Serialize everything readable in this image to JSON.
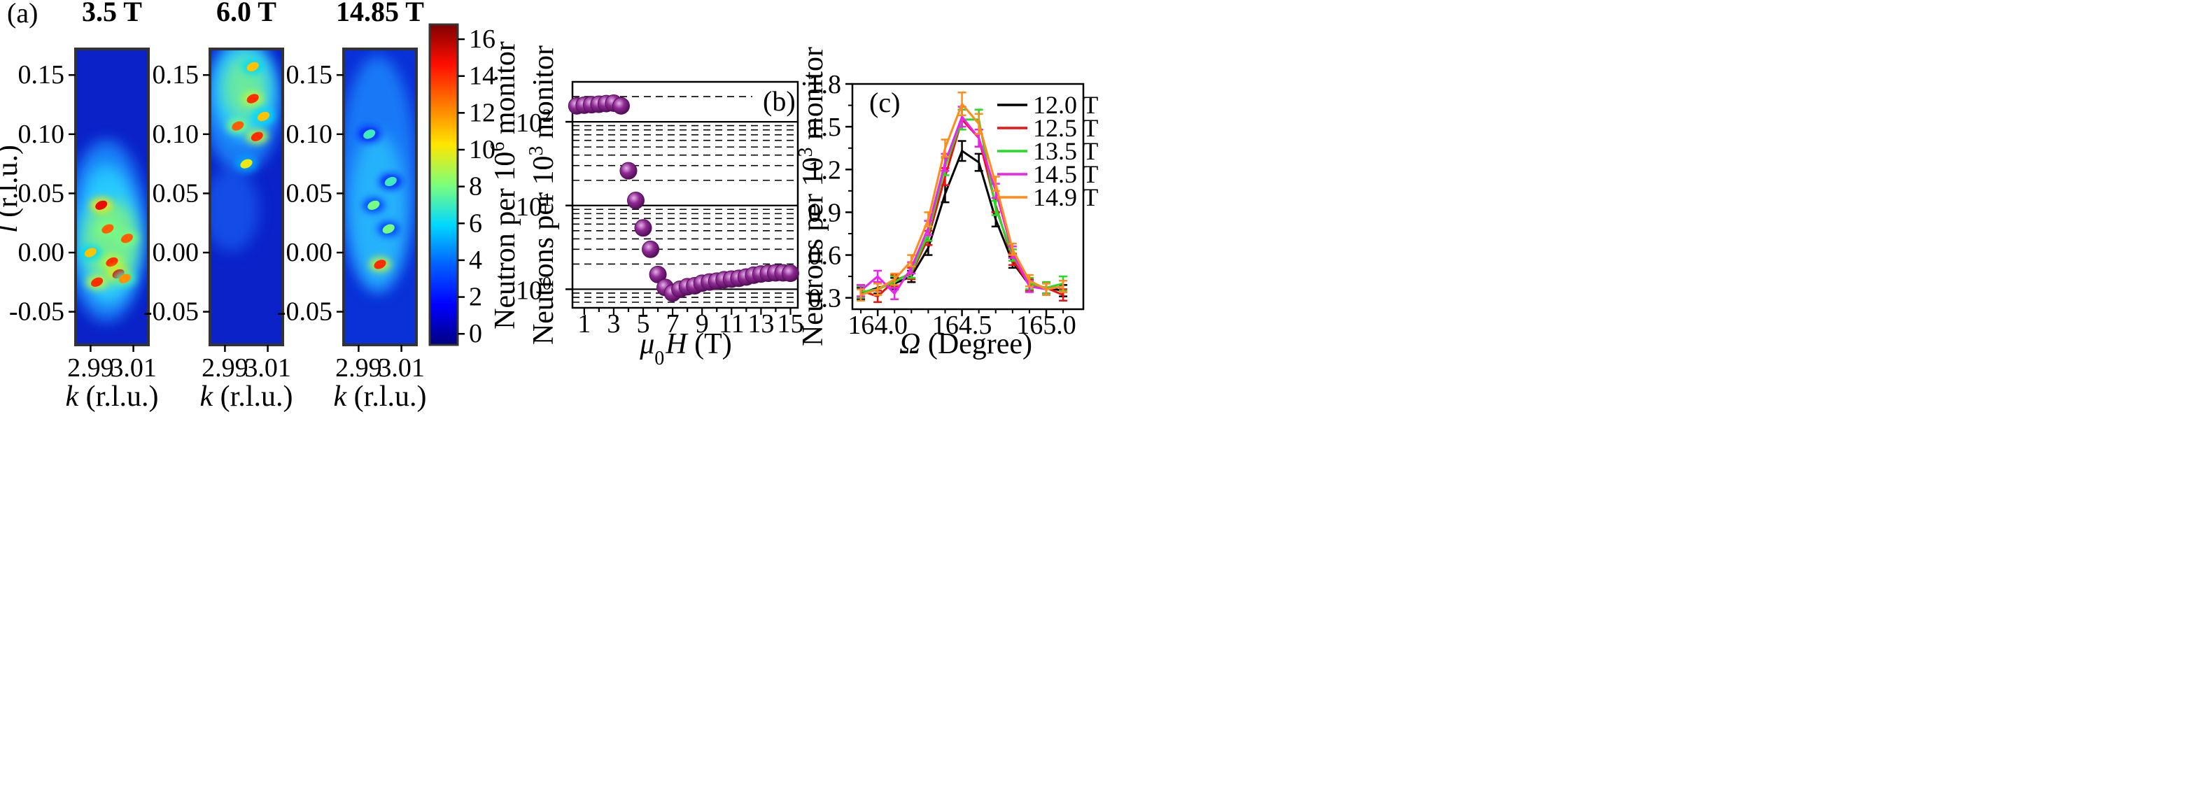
{
  "figure": {
    "panel_a_label": "(a)",
    "panel_b_label": "(b)",
    "panel_c_label": "(c)"
  },
  "chart_data": [
    {
      "id": "a",
      "type": "heatmap",
      "panels": [
        {
          "title": "3.5 T",
          "hotspots": [
            {
              "k": 2.995,
              "l": 0.04,
              "v": 15
            },
            {
              "k": 2.998,
              "l": 0.02,
              "v": 13
            },
            {
              "k": 3.0,
              "l": -0.008,
              "v": 14
            },
            {
              "k": 3.003,
              "l": -0.018,
              "v": 15
            },
            {
              "k": 2.993,
              "l": -0.025,
              "v": 14
            },
            {
              "k": 3.007,
              "l": 0.012,
              "v": 13
            },
            {
              "k": 2.99,
              "l": 0.0,
              "v": 11
            },
            {
              "k": 3.006,
              "l": -0.022,
              "v": 12
            }
          ]
        },
        {
          "title": "6.0 T",
          "hotspots": [
            {
              "k": 3.003,
              "l": 0.13,
              "v": 14
            },
            {
              "k": 2.996,
              "l": 0.107,
              "v": 13
            },
            {
              "k": 3.005,
              "l": 0.098,
              "v": 14
            },
            {
              "k": 3.003,
              "l": 0.157,
              "v": 11
            },
            {
              "k": 3.0,
              "l": 0.075,
              "v": 10
            },
            {
              "k": 3.008,
              "l": 0.115,
              "v": 11
            }
          ]
        },
        {
          "title": "14.85 T",
          "hotspots": [
            {
              "k": 3.0,
              "l": -0.01,
              "v": 14
            },
            {
              "k": 2.997,
              "l": 0.04,
              "v": 8
            },
            {
              "k": 3.004,
              "l": 0.02,
              "v": 8
            },
            {
              "k": 2.995,
              "l": 0.1,
              "v": 7
            },
            {
              "k": 3.005,
              "l": 0.06,
              "v": 7
            }
          ]
        }
      ],
      "xlabel": "k (r.l.u.)",
      "ylabel": "l (r.l.u.)",
      "x_ticks": [
        "2.99",
        "3.01"
      ],
      "y_ticks": [
        "0.15",
        "0.10",
        "0.05",
        "0.00",
        "-0.05"
      ],
      "xlim": [
        2.983,
        3.017
      ],
      "ylim": [
        -0.078,
        0.172
      ],
      "colorbar": {
        "label": "Neutron per 10^6 monitor",
        "label_main": "Neutron per 10",
        "label_sup": "6",
        "label_end": " monitor",
        "range": [
          -0.6,
          16.8
        ],
        "ticks": [
          "0",
          "2",
          "4",
          "6",
          "8",
          "10",
          "12",
          "14",
          "16"
        ]
      }
    },
    {
      "id": "b",
      "type": "scatter",
      "xlabel": "μ0H (T)",
      "xlabel_sym": "μ",
      "xlabel_sub": "0",
      "xlabel_rest": "H (T)",
      "ylabel": "Neutrons per 10^3 monitor",
      "ylabel_main": "Neutrons per 10",
      "ylabel_sup": "3",
      "ylabel_end": " monitor",
      "yscale": "log",
      "ylim": [
        0.6,
        300
      ],
      "xlim": [
        0.2,
        15.5
      ],
      "x_ticks": [
        "1",
        "3",
        "5",
        "7",
        "9",
        "11",
        "13",
        "15"
      ],
      "y_ticks": [
        {
          "base": "10",
          "exp": "0"
        },
        {
          "base": "10",
          "exp": "1"
        },
        {
          "base": "10",
          "exp": "2"
        }
      ],
      "x": [
        0.5,
        1.0,
        1.5,
        2.0,
        2.5,
        3.0,
        3.5,
        4.0,
        4.5,
        5.0,
        5.5,
        6.0,
        6.5,
        7.0,
        7.5,
        8.0,
        8.5,
        9.0,
        9.5,
        10.0,
        10.5,
        11.0,
        11.5,
        12.0,
        12.5,
        13.0,
        13.5,
        14.0,
        14.5,
        15.0
      ],
      "y": [
        155,
        158,
        160,
        162,
        165,
        167,
        155,
        26,
        11.5,
        5.4,
        3.0,
        1.5,
        1.05,
        0.9,
        1.0,
        1.07,
        1.1,
        1.18,
        1.22,
        1.25,
        1.3,
        1.32,
        1.35,
        1.4,
        1.47,
        1.52,
        1.55,
        1.57,
        1.57,
        1.55
      ]
    },
    {
      "id": "c",
      "type": "line",
      "xlabel": "Ω (Degree)",
      "xlabel_sym": "Ω",
      "xlabel_rest": " (Degree)",
      "ylabel": "Neutrons per 10^3 monitor",
      "ylabel_main": "Neutrons per 10",
      "ylabel_sup": "3",
      "ylabel_end": " monitor",
      "xlim": [
        163.85,
        165.22
      ],
      "ylim": [
        0.22,
        1.8
      ],
      "x_ticks": [
        "164.0",
        "164.5",
        "165.0"
      ],
      "y_ticks": [
        "0.3",
        "0.6",
        "0.9",
        "1.2",
        "1.5",
        "1.8"
      ],
      "x": [
        163.9,
        164.0,
        164.1,
        164.2,
        164.3,
        164.4,
        164.5,
        164.6,
        164.7,
        164.8,
        164.9,
        165.0,
        165.1
      ],
      "series": [
        {
          "name": "12.0 T",
          "color": "#000000",
          "values": [
            0.33,
            0.37,
            0.4,
            0.45,
            0.65,
            1.03,
            1.33,
            1.25,
            0.85,
            0.55,
            0.39,
            0.37,
            0.35
          ],
          "errors": [
            0.04,
            0.04,
            0.04,
            0.04,
            0.05,
            0.06,
            0.07,
            0.06,
            0.05,
            0.04,
            0.04,
            0.04,
            0.04
          ]
        },
        {
          "name": "12.5 T",
          "color": "#ee1111",
          "values": [
            0.35,
            0.31,
            0.42,
            0.47,
            0.72,
            1.15,
            1.55,
            1.42,
            0.95,
            0.57,
            0.39,
            0.37,
            0.32
          ],
          "errors": [
            0.04,
            0.04,
            0.04,
            0.04,
            0.05,
            0.06,
            0.07,
            0.06,
            0.05,
            0.04,
            0.04,
            0.04,
            0.04
          ]
        },
        {
          "name": "13.5 T",
          "color": "#22dd22",
          "values": [
            0.34,
            0.36,
            0.41,
            0.48,
            0.75,
            1.22,
            1.55,
            1.55,
            0.93,
            0.6,
            0.4,
            0.37,
            0.4
          ],
          "errors": [
            0.04,
            0.04,
            0.04,
            0.04,
            0.05,
            0.06,
            0.07,
            0.07,
            0.05,
            0.04,
            0.04,
            0.04,
            0.05
          ]
        },
        {
          "name": "14.5 T",
          "color": "#ee22ee",
          "values": [
            0.35,
            0.45,
            0.33,
            0.51,
            0.79,
            1.25,
            1.57,
            1.42,
            1.05,
            0.62,
            0.38,
            0.36,
            0.38
          ],
          "errors": [
            0.04,
            0.04,
            0.04,
            0.04,
            0.05,
            0.06,
            0.07,
            0.06,
            0.05,
            0.04,
            0.04,
            0.04,
            0.04
          ]
        },
        {
          "name": "14.9 T",
          "color": "#ff8c1a",
          "values": [
            0.32,
            0.36,
            0.43,
            0.56,
            0.85,
            1.35,
            1.66,
            1.52,
            1.1,
            0.64,
            0.42,
            0.36,
            0.38
          ],
          "errors": [
            0.04,
            0.04,
            0.04,
            0.04,
            0.05,
            0.06,
            0.08,
            0.07,
            0.05,
            0.04,
            0.04,
            0.04,
            0.04
          ]
        }
      ]
    }
  ]
}
